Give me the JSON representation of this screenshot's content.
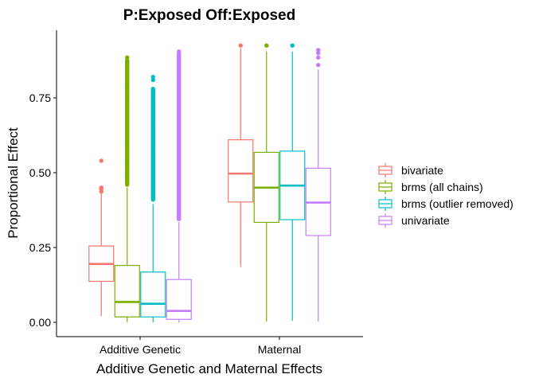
{
  "chart_data": {
    "type": "boxplot",
    "title": "P:Exposed Off:Exposed",
    "xlabel": "Additive Genetic and Maternal Effects",
    "ylabel": "Proportional Effect",
    "ylim": [
      -0.05,
      0.95
    ],
    "yticks": [
      0.0,
      0.25,
      0.5,
      0.75
    ],
    "ytick_labels": [
      "0.00",
      "0.25",
      "0.50",
      "0.75"
    ],
    "categories": [
      "Additive Genetic",
      "Maternal"
    ],
    "grid": false,
    "legend_position": "right",
    "series": [
      {
        "name": "bivariate",
        "color": "#F8766D",
        "boxes": [
          {
            "whisker_low": 0.02,
            "q1": 0.137,
            "median": 0.195,
            "q3": 0.255,
            "whisker_high": 0.43,
            "outliers": [
              0.437,
              0.445,
              0.45,
              0.54
            ]
          },
          {
            "whisker_low": 0.185,
            "q1": 0.402,
            "median": 0.497,
            "q3": 0.61,
            "whisker_high": 0.915,
            "outliers": [
              0.925
            ]
          }
        ]
      },
      {
        "name": "brms (all chains)",
        "color": "#7CAE00",
        "boxes": [
          {
            "whisker_low": 0.0,
            "q1": 0.018,
            "median": 0.068,
            "q3": 0.19,
            "whisker_high": 0.45,
            "outlier_range": [
              0.46,
              0.875
            ],
            "outliers": [
              0.885
            ]
          },
          {
            "whisker_low": 0.002,
            "q1": 0.334,
            "median": 0.45,
            "q3": 0.568,
            "whisker_high": 0.905,
            "outliers": [
              0.925
            ]
          }
        ]
      },
      {
        "name": "brms (outlier removed)",
        "color": "#00BFC4",
        "boxes": [
          {
            "whisker_low": 0.0,
            "q1": 0.018,
            "median": 0.062,
            "q3": 0.168,
            "whisker_high": 0.395,
            "outlier_range": [
              0.41,
              0.78
            ],
            "outliers": [
              0.81,
              0.82
            ]
          },
          {
            "whisker_low": 0.005,
            "q1": 0.343,
            "median": 0.457,
            "q3": 0.572,
            "whisker_high": 0.905,
            "outliers": [
              0.925
            ]
          }
        ]
      },
      {
        "name": "univariate",
        "color": "#C77CFF",
        "boxes": [
          {
            "whisker_low": 0.0,
            "q1": 0.01,
            "median": 0.038,
            "q3": 0.143,
            "whisker_high": 0.335,
            "outlier_range": [
              0.345,
              0.895
            ],
            "outliers": [
              0.905
            ]
          },
          {
            "whisker_low": 0.002,
            "q1": 0.29,
            "median": 0.4,
            "q3": 0.515,
            "whisker_high": 0.845,
            "outliers": [
              0.86,
              0.885,
              0.9,
              0.91
            ]
          }
        ]
      }
    ]
  }
}
